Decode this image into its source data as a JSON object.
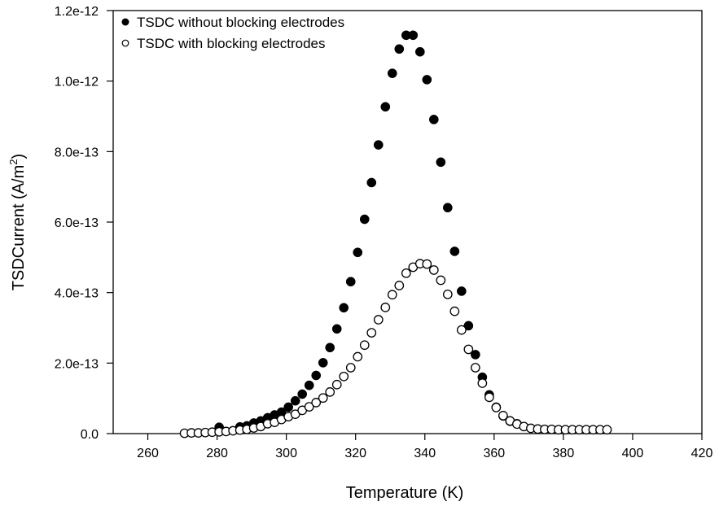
{
  "chart_data": {
    "type": "scatter",
    "title": "",
    "xlabel": "Temperature (K)",
    "ylabel": "TSDCurrent (A/m",
    "ylabel_superscript": "2",
    "ylabel_suffix": ")",
    "xlim": [
      250,
      420
    ],
    "ylim": [
      0,
      1.2e-12
    ],
    "xticks": [
      260,
      280,
      300,
      320,
      340,
      360,
      380,
      400,
      420
    ],
    "xtick_labels": [
      "260",
      "280",
      "300",
      "320",
      "340",
      "360",
      "380",
      "400",
      "420"
    ],
    "yticks": [
      0,
      2e-13,
      4e-13,
      6e-13,
      8e-13,
      1e-12,
      1.2e-12
    ],
    "ytick_labels": [
      "0.0",
      "2.0e-13",
      "4.0e-13",
      "6.0e-13",
      "8.0e-13",
      "1.0e-12",
      "1.2e-12"
    ],
    "grid": false,
    "legend_position": "top-left",
    "series": [
      {
        "name": "TSDC without blocking electrodes",
        "marker": "filled-circle",
        "color": "#000000",
        "x": [
          280.6,
          286.6,
          288.6,
          290.6,
          292.6,
          294.6,
          296.6,
          298.6,
          300.6,
          302.6,
          304.6,
          306.6,
          308.6,
          310.6,
          312.6,
          314.6,
          316.6,
          318.6,
          320.6,
          322.6,
          324.6,
          326.6,
          328.6,
          330.6,
          332.6,
          334.6,
          336.6,
          338.6,
          340.6,
          342.6,
          344.6,
          346.6,
          348.6,
          350.6,
          352.6,
          354.6,
          356.6,
          358.6,
          360.6,
          362.6,
          364.6,
          366.6
        ],
        "y": [
          1.8e-14,
          1.9e-14,
          2.2e-14,
          3e-14,
          3.6e-14,
          4.5e-14,
          5.3e-14,
          6.1e-14,
          7.5e-14,
          9.3e-14,
          1.12e-13,
          1.37e-13,
          1.65e-13,
          2.01e-13,
          2.44e-13,
          2.97e-13,
          3.57e-13,
          4.31e-13,
          5.14e-13,
          6.08e-13,
          7.12e-13,
          8.19e-13,
          9.27e-13,
          1.022e-12,
          1.091e-12,
          1.13e-12,
          1.13e-12,
          1.083e-12,
          1.004e-12,
          8.91e-13,
          7.7e-13,
          6.41e-13,
          5.17e-13,
          4.04e-13,
          3.06e-13,
          2.24e-13,
          1.6e-13,
          1.1e-13,
          7.5e-14,
          5e-14,
          3.5e-14,
          2.8e-14
        ]
      },
      {
        "name": "TSDC with blocking electrodes",
        "marker": "open-circle",
        "color": "#000000",
        "x": [
          270.6,
          272.6,
          274.6,
          276.6,
          278.6,
          280.6,
          282.6,
          284.6,
          286.6,
          288.6,
          290.6,
          292.6,
          294.6,
          296.6,
          298.6,
          300.6,
          302.6,
          304.6,
          306.6,
          308.6,
          310.6,
          312.6,
          314.6,
          316.6,
          318.6,
          320.6,
          322.6,
          324.6,
          326.6,
          328.6,
          330.6,
          332.6,
          334.6,
          336.6,
          338.6,
          340.6,
          342.6,
          344.6,
          346.6,
          348.6,
          350.6,
          352.6,
          354.6,
          356.6,
          358.6,
          360.6,
          362.6,
          364.6,
          366.6,
          368.6,
          370.6,
          372.6,
          374.6,
          376.6,
          378.6,
          380.6,
          382.6,
          384.6,
          386.6,
          388.6,
          390.6,
          392.6
        ],
        "y": [
          1e-15,
          2e-15,
          2e-15,
          3e-15,
          4e-15,
          5e-15,
          6e-15,
          8e-15,
          1e-14,
          1.2e-14,
          1.6e-14,
          2e-14,
          2.8e-14,
          3.2e-14,
          4e-14,
          4.8e-14,
          5.5e-14,
          6.6e-14,
          7.6e-14,
          8.8e-14,
          1.01e-13,
          1.18e-13,
          1.39e-13,
          1.62e-13,
          1.87e-13,
          2.18e-13,
          2.51e-13,
          2.86e-13,
          3.23e-13,
          3.58e-13,
          3.94e-13,
          4.2e-13,
          4.55e-13,
          4.72e-13,
          4.82e-13,
          4.81e-13,
          4.64e-13,
          4.35e-13,
          3.95e-13,
          3.47e-13,
          2.94e-13,
          2.39e-13,
          1.87e-13,
          1.43e-13,
          1.03e-13,
          7.4e-14,
          5.1e-14,
          3.6e-14,
          2.7e-14,
          2e-14,
          1.5e-14,
          1.3e-14,
          1.2e-14,
          1.2e-14,
          1.1e-14,
          1.1e-14,
          1.1e-14,
          1.1e-14,
          1.1e-14,
          1.1e-14,
          1.1e-14,
          1.1e-14
        ]
      }
    ]
  }
}
